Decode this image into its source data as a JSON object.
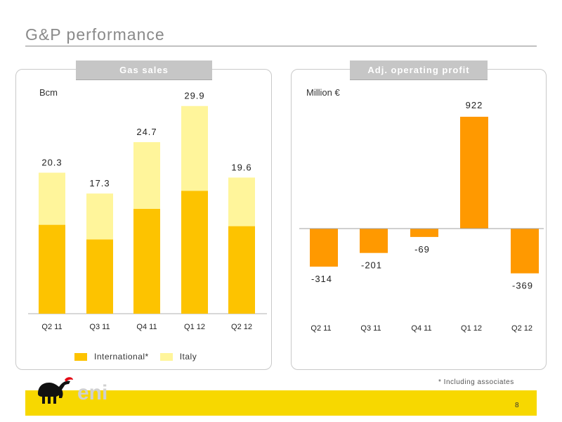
{
  "title": "G&P performance",
  "left_panel": {
    "header": "Gas sales",
    "unit": "Bcm",
    "legend": [
      {
        "label": "International*",
        "color": "#FDC300"
      },
      {
        "label": "Italy",
        "color": "#FFF59B"
      }
    ]
  },
  "right_panel": {
    "header": "Adj. operating profit",
    "unit": "Million €"
  },
  "footnote": "* Including associates",
  "page_number": "8",
  "logo_text": "eni",
  "colors": {
    "international": "#FDC300",
    "italy": "#FFF59B",
    "profit": "#FF9900",
    "footer": "#F7D800"
  },
  "chart_data": [
    {
      "type": "bar",
      "stacked": true,
      "categories": [
        "Q2 11",
        "Q3 11",
        "Q4 11",
        "Q1 12",
        "Q2 12"
      ],
      "series": [
        {
          "name": "International*",
          "values": [
            12.8,
            10.7,
            15.1,
            17.7,
            12.6
          ]
        },
        {
          "name": "Italy",
          "values": [
            7.5,
            6.6,
            9.6,
            12.2,
            7.0
          ]
        }
      ],
      "totals": [
        "20.3",
        "17.3",
        "24.7",
        "29.9",
        "19.6"
      ],
      "ylabel": "Bcm",
      "ylim": [
        0,
        32
      ]
    },
    {
      "type": "bar",
      "categories": [
        "Q2 11",
        "Q3 11",
        "Q4 11",
        "Q1 12",
        "Q2 12"
      ],
      "values": [
        -314,
        -201,
        -69,
        922,
        -369
      ],
      "labels": [
        "-314",
        "-201",
        "-69",
        "922",
        "-369"
      ],
      "ylabel": "Million €",
      "ylim": [
        -700,
        1000
      ]
    }
  ]
}
